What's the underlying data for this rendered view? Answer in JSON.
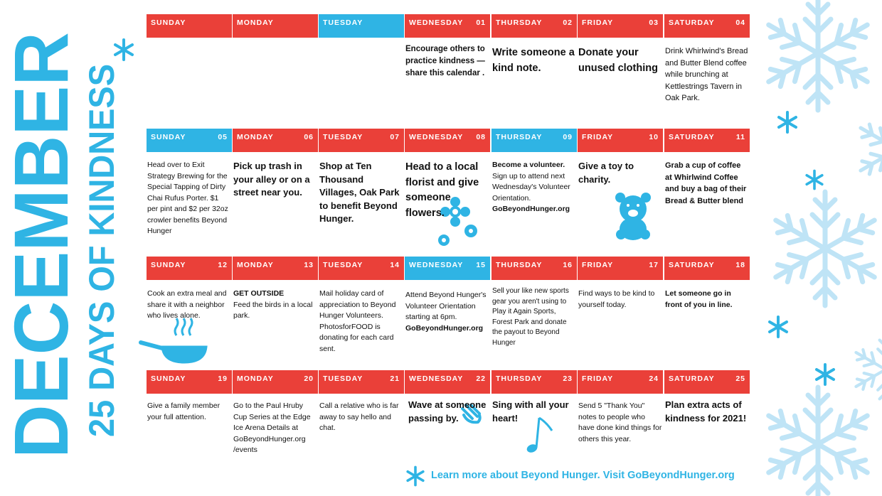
{
  "title": "DECEMBER",
  "subtitle": "25 DAYS OF KINDNESS",
  "footer": "Learn more about Beyond Hunger. Visit GoBeyondHunger.org",
  "weeks": [
    [
      {
        "day": "SUNDAY",
        "color": "#ea4039"
      },
      {
        "day": "MONDAY",
        "color": "#ea4039"
      },
      {
        "day": "TUESDAY",
        "color": "#2fb4e4"
      },
      {
        "day": "WEDNESDAY",
        "date": "01",
        "color": "#ea4039",
        "paragraphs": [
          {
            "text": "Encourage others to practice kindness —share this calendar .",
            "bold": true
          }
        ]
      },
      {
        "day": "THURSDAY",
        "date": "02",
        "color": "#ea4039",
        "paragraphs": [
          {
            "text": "Write someone a kind note.",
            "bold": true
          }
        ]
      },
      {
        "day": "FRIDAY",
        "date": "03",
        "color": "#ea4039",
        "paragraphs": [
          {
            "text": "Donate your unused clothing",
            "bold": true
          }
        ]
      },
      {
        "day": "SATURDAY",
        "date": "04",
        "color": "#ea4039",
        "paragraphs": [
          {
            "text": "Drink Whirlwind's Bread and Butter Blend coffee while brunching at Kettlestrings Tavern in Oak Park.",
            "bold": false
          }
        ]
      }
    ],
    [
      {
        "day": "SUNDAY",
        "date": "05",
        "color": "#2fb4e4",
        "paragraphs": [
          {
            "text": "Head over to Exit Strategy Brewing for the Special Tapping of Dirty Chai Rufus Porter. $1 per pint and $2 per 32oz crowler benefits Beyond Hunger",
            "bold": false
          }
        ]
      },
      {
        "day": "MONDAY",
        "date": "06",
        "color": "#ea4039",
        "paragraphs": [
          {
            "text": "Pick up trash in your alley or on a street near you.",
            "bold": true
          }
        ]
      },
      {
        "day": "TUESDAY",
        "date": "07",
        "color": "#ea4039",
        "paragraphs": [
          {
            "text": "Shop at Ten Thousand Villages, Oak Park to benefit Beyond Hunger.",
            "bold": true
          }
        ]
      },
      {
        "day": "WEDNESDAY",
        "date": "08",
        "color": "#ea4039",
        "paragraphs": [
          {
            "text": "Head to a local florist and give someone flowers.",
            "bold": true
          }
        ]
      },
      {
        "day": "THURSDAY",
        "date": "09",
        "color": "#2fb4e4",
        "paragraphs": [
          {
            "text": "Become a volunteer.",
            "bold": true
          },
          {
            "text": "Sign up to attend next Wednesday's Volunteer Orientation.",
            "bold": false
          },
          {
            "text": "GoBeyondHunger.org",
            "bold": true
          }
        ]
      },
      {
        "day": "FRIDAY",
        "date": "10",
        "color": "#ea4039",
        "paragraphs": [
          {
            "text": "Give a toy to charity.",
            "bold": true
          }
        ]
      },
      {
        "day": "SATURDAY",
        "date": "11",
        "color": "#ea4039",
        "paragraphs": [
          {
            "text": "Grab a cup of coffee at Whirlwind Coffee and buy a bag of their Bread & Butter blend",
            "bold": true
          }
        ]
      }
    ],
    [
      {
        "day": "SUNDAY",
        "date": "12",
        "color": "#ea4039",
        "paragraphs": [
          {
            "text": "Cook an extra meal and share it with a neighbor who lives alone.",
            "bold": false
          }
        ]
      },
      {
        "day": "MONDAY",
        "date": "13",
        "color": "#ea4039",
        "paragraphs": [
          {
            "text": "GET OUTSIDE",
            "bold": true
          },
          {
            "text": "Feed the birds in a local park.",
            "bold": false
          }
        ]
      },
      {
        "day": "TUESDAY",
        "date": "14",
        "color": "#ea4039",
        "paragraphs": [
          {
            "text": "Mail  holiday card of appreciation to Beyond Hunger Volunteers. PhotosforFOOD is donating for each card sent.",
            "bold": false
          }
        ]
      },
      {
        "day": "WEDNESDAY",
        "date": "15",
        "color": "#2fb4e4",
        "paragraphs": [
          {
            "text": "Attend Beyond Hunger's Volunteer Orientation starting at 6pm.",
            "bold": false
          },
          {
            "text": "GoBeyondHunger.org",
            "bold": true
          }
        ]
      },
      {
        "day": "THURSDAY",
        "date": "16",
        "color": "#ea4039",
        "paragraphs": [
          {
            "text": "Sell your like new sports gear you aren't using to Play it Again Sports, Forest Park and donate the payout to Beyond Hunger",
            "bold": false
          }
        ]
      },
      {
        "day": "FRIDAY",
        "date": "17",
        "color": "#ea4039",
        "paragraphs": [
          {
            "text": "Find ways to be kind to yourself today.",
            "bold": false
          }
        ]
      },
      {
        "day": "SATURDAY",
        "date": "18",
        "color": "#ea4039",
        "paragraphs": [
          {
            "text": "Let someone go in front of you in line.",
            "bold": true
          }
        ]
      }
    ],
    [
      {
        "day": "SUNDAY",
        "date": "19",
        "color": "#ea4039",
        "paragraphs": [
          {
            "text": "Give a family member your full attention.",
            "bold": false
          }
        ]
      },
      {
        "day": "MONDAY",
        "date": "20",
        "color": "#ea4039",
        "paragraphs": [
          {
            "text": "Go to the Paul Hruby Cup Series at the Edge Ice Arena Details at GoBeyondHunger.org /events",
            "bold": false
          }
        ]
      },
      {
        "day": "TUESDAY",
        "date": "21",
        "color": "#ea4039",
        "paragraphs": [
          {
            "text": "Call a relative who is far away to say hello and chat.",
            "bold": false
          }
        ]
      },
      {
        "day": "WEDNESDAY",
        "date": "22",
        "color": "#ea4039",
        "paragraphs": [
          {
            "text": "Wave at someone passing by.",
            "bold": true
          }
        ]
      },
      {
        "day": "THURSDAY",
        "date": "23",
        "color": "#ea4039",
        "paragraphs": [
          {
            "text": "Sing with all your heart!",
            "bold": true
          }
        ]
      },
      {
        "day": "FRIDAY",
        "date": "24",
        "color": "#ea4039",
        "paragraphs": [
          {
            "text": "Send 5 \"Thank You\" notes to people who have done kind things for others this year.",
            "bold": false
          }
        ]
      },
      {
        "day": "SATURDAY",
        "date": "25",
        "color": "#ea4039",
        "paragraphs": [
          {
            "text": "Plan extra acts of kindness for 2021!",
            "bold": true
          }
        ]
      }
    ]
  ]
}
